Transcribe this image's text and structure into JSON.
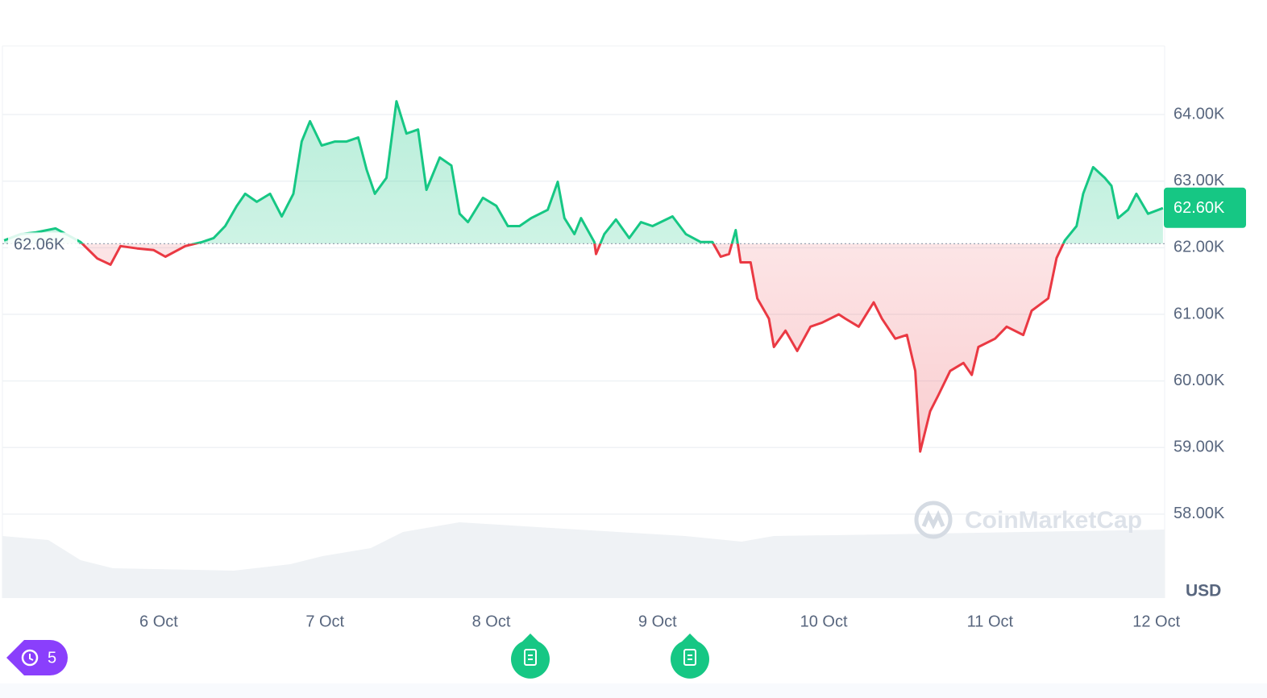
{
  "chart_data": {
    "type": "line",
    "x": [
      5.07,
      5.17,
      5.26,
      5.38,
      5.53,
      5.63,
      5.71,
      5.77,
      5.87,
      5.97,
      6.04,
      6.16,
      6.26,
      6.33,
      6.4,
      6.47,
      6.52,
      6.59,
      6.67,
      6.74,
      6.81,
      6.86,
      6.91,
      6.98,
      7.06,
      7.13,
      7.2,
      7.25,
      7.3,
      7.37,
      7.43,
      7.49,
      7.56,
      7.61,
      7.69,
      7.76,
      7.81,
      7.86,
      7.95,
      8.03,
      8.1,
      8.17,
      8.24,
      8.34,
      8.4,
      8.44,
      8.5,
      8.54,
      8.62,
      8.63,
      8.68,
      8.75,
      8.83,
      8.9,
      8.97,
      9.09,
      9.17,
      9.26,
      9.33,
      9.38,
      9.43,
      9.47,
      9.5,
      9.56,
      9.6,
      9.67,
      9.7,
      9.77,
      9.84,
      9.92,
      9.99,
      10.09,
      10.13,
      10.21,
      10.3,
      10.35,
      10.43,
      10.5,
      10.55,
      10.58,
      10.64,
      10.69,
      10.76,
      10.84,
      10.89,
      10.93,
      11.03,
      11.1,
      11.2,
      11.25,
      11.35,
      11.4,
      11.45,
      11.52,
      11.56,
      11.62,
      11.69,
      11.73,
      11.77,
      11.83,
      11.88,
      11.95,
      12.04
    ],
    "series": [
      {
        "name": "Price",
        "values": [
          62110,
          62205,
          62230,
          62290,
          62085,
          61840,
          61745,
          62025,
          61990,
          61965,
          61865,
          62025,
          62085,
          62145,
          62325,
          62630,
          62810,
          62690,
          62810,
          62470,
          62810,
          63595,
          63900,
          63535,
          63595,
          63595,
          63655,
          63175,
          62810,
          63050,
          64200,
          63715,
          63775,
          62870,
          63355,
          63235,
          62510,
          62385,
          62750,
          62630,
          62325,
          62325,
          62445,
          62570,
          62990,
          62445,
          62205,
          62445,
          62085,
          61905,
          62205,
          62425,
          62145,
          62385,
          62325,
          62470,
          62205,
          62085,
          62085,
          61865,
          61905,
          62265,
          61780,
          61780,
          61240,
          60935,
          60510,
          60755,
          60450,
          60815,
          60875,
          61000,
          60935,
          60815,
          61180,
          60935,
          60635,
          60690,
          60150,
          58940,
          59545,
          59790,
          60150,
          60270,
          60090,
          60510,
          60635,
          60815,
          60690,
          61055,
          61240,
          61845,
          62110,
          62325,
          62810,
          63210,
          63050,
          62930,
          62445,
          62570,
          62810,
          62510,
          62595
        ]
      }
    ],
    "up_color": "#16c784",
    "down_color": "#ea3943",
    "reference": {
      "value": 62060,
      "label": "62.06K"
    },
    "current_price": {
      "value": 62600,
      "label": "62.60K"
    },
    "xlim": [
      5.06,
      12.05
    ],
    "xticks": [
      {
        "value": 6,
        "label": "6 Oct"
      },
      {
        "value": 7,
        "label": "7 Oct"
      },
      {
        "value": 8,
        "label": "8 Oct"
      },
      {
        "value": 9,
        "label": "9 Oct"
      },
      {
        "value": 10,
        "label": "10 Oct"
      },
      {
        "value": 11,
        "label": "11 Oct"
      },
      {
        "value": 12,
        "label": "12 Oct"
      }
    ],
    "ylim": [
      56740,
      65030
    ],
    "yticks": [
      {
        "value": 58000,
        "label": "58.00K"
      },
      {
        "value": 59000,
        "label": "59.00K"
      },
      {
        "value": 60000,
        "label": "60.00K"
      },
      {
        "value": 61000,
        "label": "61.00K"
      },
      {
        "value": 62000,
        "label": "62.00K"
      },
      {
        "value": 63000,
        "label": "63.00K"
      },
      {
        "value": 64000,
        "label": "64.00K"
      }
    ],
    "grid": true,
    "currency_label": "USD",
    "watermark": "CoinMarketCap",
    "history_badge": "5"
  }
}
